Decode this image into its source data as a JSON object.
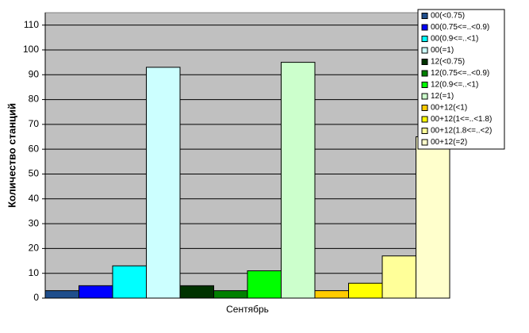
{
  "chart_data": {
    "type": "bar",
    "y_label": "Количество станций",
    "categories": [
      "Сентябрь"
    ],
    "series": [
      {
        "name": "00(<0.75)",
        "color": "#1f4e8c",
        "values": [
          3
        ]
      },
      {
        "name": "00(0.75<=..<0.9)",
        "color": "#0000ff",
        "values": [
          5
        ]
      },
      {
        "name": "00(0.9<=..<1)",
        "color": "#00ffff",
        "values": [
          13
        ]
      },
      {
        "name": "00(=1)",
        "color": "#ccffff",
        "values": [
          93
        ]
      },
      {
        "name": "12(<0.75)",
        "color": "#003300",
        "values": [
          5
        ]
      },
      {
        "name": "12(0.75<=..<0.9)",
        "color": "#008000",
        "values": [
          3
        ]
      },
      {
        "name": "12(0.9<=..<1)",
        "color": "#00ff00",
        "values": [
          11
        ]
      },
      {
        "name": "12(=1)",
        "color": "#ccffcc",
        "values": [
          95
        ]
      },
      {
        "name": "00+12(<1)",
        "color": "#ffcc00",
        "values": [
          3
        ]
      },
      {
        "name": "00+12(1<=..<1.8)",
        "color": "#ffff00",
        "values": [
          6
        ]
      },
      {
        "name": "00+12(1.8<=..<2)",
        "color": "#ffff99",
        "values": [
          17
        ]
      },
      {
        "name": "00+12(=2)",
        "color": "#ffffcc",
        "values": [
          65
        ]
      }
    ],
    "ylim": [
      0,
      115
    ],
    "yticks": [
      0,
      10,
      20,
      30,
      40,
      50,
      60,
      70,
      80,
      90,
      100,
      110
    ],
    "grid": true,
    "legend": "top-right"
  }
}
